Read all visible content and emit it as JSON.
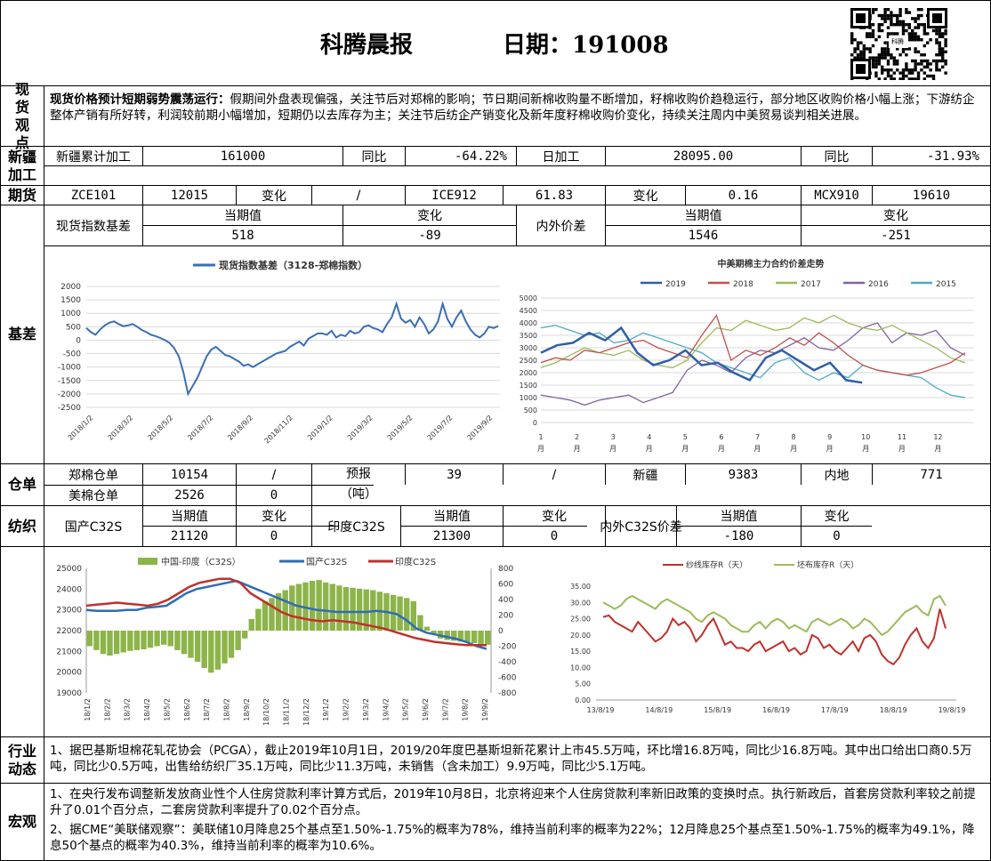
{
  "header": {
    "title": "科腾晨报",
    "date_label": "日期：",
    "date": "191008"
  },
  "spot_view": {
    "label": "现货观点",
    "headline": "现货价格预计短期弱势震荡运行：",
    "body": "假期间外盘表现偏强，关注节后对郑棉的影响；节日期间新棉收购量不断增加，籽棉收购价趋稳运行，部分地区收购价格小幅上涨；下游纺企整体产销有所好转，利润较前期小幅增加，短期仍以去库存为主；关注节后纺企产销变化及新年度籽棉收购价变化，持续关注周内中美贸易谈判相关进展。"
  },
  "xinjiang": {
    "label": "新疆加工",
    "c1": "新疆累计加工",
    "v1": "161000",
    "c2": "同比",
    "v2": "-64.22%",
    "c3": "日加工",
    "v3": "28095.00",
    "c4": "同比",
    "v4": "-31.93%"
  },
  "futures": {
    "label": "期货",
    "c1": "ZCE101",
    "v1": "12015",
    "c2": "变化",
    "v2": "/",
    "c3": "ICE912",
    "v3": "61.83",
    "c4": "变化",
    "v4": "0.16",
    "c5": "MCX910",
    "v5": "19610"
  },
  "basis": {
    "label": "基差",
    "spot_index_name": "现货指数基差",
    "h_cur": "当期值",
    "h_chg": "变化",
    "cur": "518",
    "chg": "-89",
    "spread_name": "内外价差",
    "h_cur2": "当期值",
    "h_chg2": "变化",
    "cur2": "1546",
    "chg2": "-251"
  },
  "warehouse": {
    "label": "仓单",
    "zce_label": "郑棉仓单",
    "zce_val": "10154",
    "zce_chg": "/",
    "forecast_label": "预报",
    "forecast_unit": "（吨）",
    "forecast_val": "39",
    "forecast_chg": "/",
    "xj_label": "新疆",
    "xj_val": "9383",
    "inland_label": "内地",
    "inland_val": "771",
    "us_label": "美棉仓单",
    "us_val": "2526",
    "us_chg": "0"
  },
  "textile": {
    "label": "纺织",
    "dom_name": "国产C32S",
    "h1": "当期值",
    "h2": "变化",
    "dom_cur": "21120",
    "dom_chg": "0",
    "ind_name": "印度C32S",
    "h3": "当期值",
    "h4": "变化",
    "ind_cur": "21300",
    "ind_chg": "0",
    "spread_name": "内外C32S价差",
    "h5": "当期值",
    "h6": "变化",
    "spread_cur": "-180",
    "spread_chg": "0"
  },
  "industry": {
    "label": "行业动态",
    "text": "1、据巴基斯坦棉花轧花协会（PCGA），截止2019年10月1日，2019/20年度巴基斯坦新花累计上市45.5万吨，环比增16.8万吨，同比少16.8万吨。其中出口给出口商0.5万吨，同比少0.5万吨，出售给纺织厂35.1万吨，同比少11.3万吨，未销售（含未加工）9.9万吨，同比少5.1万吨。"
  },
  "macro": {
    "label": "宏观",
    "p1": "1、在央行发布调整新发放商业性个人住房贷款利率计算方式后，2019年10月8日，北京将迎来个人住房贷款利率新旧政策的变换时点。执行新政后，首套房贷款利率较之前提升了0.01个百分点，二套房贷款利率提升了0.02个百分点。",
    "p2": "2、据CME“美联储观察”：美联储10月降息25个基点至1.50%-1.75%的概率为78%，维持当前利率的概率为22%；12月降息25个基点至1.50%-1.75%的概率为49.1%，降息50个基点的概率为40.3%，维持当前利率的概率为10.6%。"
  },
  "qr": {
    "caption": "科腾"
  },
  "chart_data": [
    {
      "type": "line",
      "title": "现货指数基差（3128-郑棉指数）",
      "series": [
        {
          "name": "现货指数基差（3128-郑棉指数）",
          "color": "#3b6eb5",
          "values": [
            450,
            300,
            200,
            400,
            550,
            650,
            700,
            600,
            520,
            550,
            600,
            500,
            380,
            300,
            200,
            150,
            80,
            0,
            -100,
            -300,
            -600,
            -1200,
            -2000,
            -1700,
            -1400,
            -1000,
            -600,
            -350,
            -250,
            -400,
            -550,
            -600,
            -700,
            -800,
            -950,
            -900,
            -1000,
            -900,
            -800,
            -700,
            -600,
            -500,
            -450,
            -400,
            -250,
            -150,
            -50,
            -200,
            50,
            150,
            250,
            250,
            200,
            350,
            100,
            200,
            150,
            350,
            250,
            300,
            500,
            550,
            450,
            400,
            300,
            600,
            850,
            1350,
            800,
            650,
            750,
            500,
            850,
            600,
            250,
            400,
            700,
            1350,
            800,
            500,
            850,
            1100,
            700,
            400,
            200,
            100,
            250,
            500,
            450,
            520
          ]
        }
      ],
      "x_ticks": [
        "2018/1/2",
        "2018/3/2",
        "2018/5/2",
        "2018/7/2",
        "2018/9/2",
        "2018/11/2",
        "2019/1/2",
        "2019/3/2",
        "2019/5/2",
        "2019/7/2",
        "2019/9/2"
      ],
      "ylim": [
        -2500,
        2000
      ],
      "y_ticks": [
        "2000",
        "1500",
        "1000",
        "500",
        "0",
        "-500",
        "-1000",
        "-1500",
        "-2000",
        "-2500"
      ]
    },
    {
      "type": "line",
      "title": "中美期棉主力合约价差走势",
      "x_ticks": [
        "1月",
        "2月",
        "3月",
        "4月",
        "5月",
        "6月",
        "7月",
        "8月",
        "9月",
        "10月",
        "11月",
        "12月"
      ],
      "ylim": [
        0,
        5000
      ],
      "y_ticks": [
        "5000",
        "4500",
        "4000",
        "3500",
        "3000",
        "2500",
        "2000",
        "1500",
        "1000",
        "500",
        "0"
      ],
      "series": [
        {
          "name": "2019",
          "color": "#2f5fa8",
          "values": [
            2800,
            3100,
            3200,
            3600,
            3300,
            3800,
            2800,
            2300,
            2500,
            2900,
            2300,
            2400,
            2000,
            1700,
            2600,
            2900,
            2500,
            2100,
            2400,
            1700,
            1600
          ]
        },
        {
          "name": "2018",
          "color": "#c0504d",
          "values": [
            2400,
            2600,
            2500,
            2900,
            2800,
            3000,
            3200,
            3300,
            3000,
            2800,
            2600,
            3500,
            4300,
            2500,
            2900,
            2700,
            3000,
            3400,
            3100,
            3600,
            3200,
            2700,
            2300,
            2100,
            2000,
            1900,
            2000,
            2200,
            2400,
            2800
          ]
        },
        {
          "name": "2017",
          "color": "#9bbb59",
          "values": [
            2200,
            2400,
            2700,
            3000,
            2800,
            2700,
            2900,
            2500,
            2300,
            2200,
            2500,
            3200,
            3800,
            3700,
            4100,
            3900,
            3700,
            3800,
            4200,
            4000,
            4300,
            4000,
            3800,
            3700,
            3900,
            3600,
            3300,
            3000,
            2600,
            2400
          ]
        },
        {
          "name": "2016",
          "color": "#8064a2",
          "values": [
            1100,
            1000,
            900,
            700,
            900,
            1000,
            1100,
            800,
            1000,
            1200,
            2100,
            2500,
            2300,
            2000,
            2600,
            2900,
            2800,
            3100,
            3400,
            3000,
            2900,
            3300,
            3800,
            4000,
            3200,
            3600,
            3500,
            3700,
            3000,
            2700
          ]
        },
        {
          "name": "2015",
          "color": "#4bacc6",
          "values": [
            3800,
            3900,
            3700,
            3500,
            3600,
            3200,
            3300,
            3600,
            3400,
            3200,
            3000,
            2800,
            2400,
            2200,
            2000,
            1800,
            2400,
            2600,
            2000,
            1700,
            2000,
            1800,
            2300,
            2100,
            2000,
            1900,
            1800,
            1400,
            1100,
            1000
          ]
        }
      ]
    },
    {
      "type": "bar+line",
      "title": "",
      "x_ticks": [
        "18/1/2",
        "18/2/2",
        "18/3/2",
        "18/4/2",
        "18/5/2",
        "18/6/2",
        "18/7/2",
        "18/8/2",
        "18/9/2",
        "18/10/2",
        "18/11/2",
        "18/12/2",
        "19/1/2",
        "19/2/2",
        "19/3/2",
        "19/4/2",
        "19/5/2",
        "19/6/2",
        "19/7/2",
        "19/8/2",
        "19/9/2"
      ],
      "ylim_left": [
        19000,
        25000
      ],
      "ylim_right": [
        -800,
        800
      ],
      "y_ticks_left": [
        "25000",
        "24000",
        "23000",
        "22000",
        "21000",
        "20000",
        "19000"
      ],
      "y_ticks_right": [
        "800",
        "600",
        "400",
        "200",
        "0",
        "-200",
        "-400",
        "-600",
        "-800"
      ],
      "series": [
        {
          "name": "中国-印度（C32S）",
          "color": "#8db44a",
          "axis": "right",
          "values": [
            -200,
            -250,
            -300,
            -320,
            -300,
            -280,
            -260,
            -250,
            -240,
            -220,
            -200,
            -180,
            -200,
            -250,
            -300,
            -350,
            -400,
            -480,
            -540,
            -500,
            -420,
            -350,
            -250,
            -100,
            150,
            280,
            380,
            420,
            480,
            520,
            580,
            600,
            620,
            640,
            650,
            620,
            600,
            580,
            560,
            550,
            540,
            530,
            520,
            500,
            480,
            460,
            440,
            420,
            380,
            200,
            50,
            -50,
            -100,
            -120,
            -130,
            -140,
            -150,
            -160,
            -170,
            -180
          ]
        },
        {
          "name": "国产C32S",
          "color": "#2f6db5",
          "axis": "left",
          "values": [
            23000,
            22950,
            22950,
            22950,
            23000,
            23000,
            23100,
            23150,
            23200,
            23500,
            23800,
            24000,
            24100,
            24200,
            24300,
            24400,
            24200,
            24000,
            23800,
            23600,
            23400,
            23200,
            23100,
            23000,
            22950,
            22900,
            22900,
            22900,
            22900,
            22950,
            22900,
            22800,
            22500,
            22100,
            21900,
            21800,
            21700,
            21600,
            21450,
            21250,
            21120
          ]
        },
        {
          "name": "印度C32S",
          "color": "#c0312b",
          "axis": "left",
          "values": [
            23200,
            23250,
            23300,
            23350,
            23300,
            23250,
            23200,
            23300,
            23500,
            23800,
            24100,
            24300,
            24400,
            24500,
            24500,
            24300,
            23800,
            23500,
            23200,
            22900,
            22700,
            22600,
            22500,
            22450,
            22500,
            22450,
            22400,
            22300,
            22200,
            22100,
            21950,
            21800,
            21650,
            21550,
            21450,
            21400,
            21350,
            21300,
            21300,
            21300
          ]
        }
      ]
    },
    {
      "type": "line",
      "title": "",
      "x_ticks": [
        "13/8/19",
        "14/8/19",
        "15/8/19",
        "16/8/19",
        "17/8/19",
        "18/8/19",
        "19/8/19"
      ],
      "ylim": [
        0,
        35
      ],
      "y_ticks": [
        "35.00",
        "30.00",
        "25.00",
        "20.00",
        "15.00",
        "10.00",
        "5.00",
        "0.00"
      ],
      "series": [
        {
          "name": "纱线库存R（天）",
          "color": "#c0312b",
          "values": [
            25.5,
            26,
            24,
            23,
            22,
            21,
            24,
            22,
            20,
            18,
            19,
            21,
            25,
            23,
            24,
            22,
            18,
            20,
            23,
            25,
            21,
            17,
            18,
            16,
            16,
            15,
            17,
            18,
            15,
            16,
            17,
            18,
            15,
            16,
            14,
            15,
            20,
            19,
            16,
            17,
            15,
            14,
            16,
            18,
            15,
            19,
            20,
            18,
            14,
            12,
            11,
            13,
            17,
            20,
            22,
            18,
            16,
            19,
            28,
            22
          ]
        },
        {
          "name": "坯布库存R（天）",
          "color": "#9bbb59",
          "values": [
            30,
            29,
            28,
            29,
            31,
            32,
            31,
            30,
            29,
            28,
            30,
            31,
            30,
            29,
            28,
            27,
            25,
            24,
            26,
            27,
            26,
            25,
            23,
            22,
            21,
            21,
            23,
            24,
            22,
            24,
            25,
            24,
            22,
            23,
            22,
            21,
            24,
            25,
            24,
            23,
            24,
            25,
            24,
            22,
            23,
            25,
            24,
            22,
            20,
            21,
            23,
            25,
            27,
            28,
            29,
            27,
            26,
            31,
            32,
            29
          ]
        }
      ]
    }
  ]
}
